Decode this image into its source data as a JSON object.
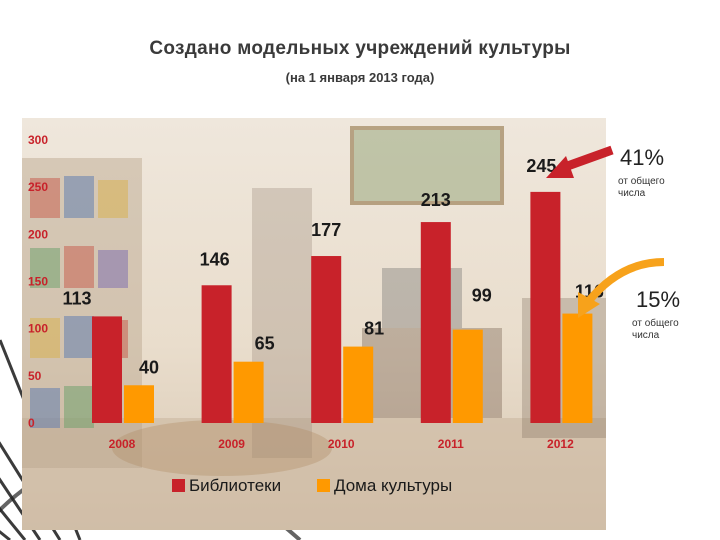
{
  "title": "Создано модельных учреждений культуры",
  "subtitle": "(на 1 января 2013 года)",
  "colors": {
    "libraries": "#c8222a",
    "culture_houses": "#ff9900",
    "arrow_red": "#c8222a",
    "arrow_orange": "#f7a21b"
  },
  "annotations": [
    {
      "percent": "41%",
      "note": "от общего числа",
      "series": "Библиотеки"
    },
    {
      "percent": "15%",
      "note": "от общего числа",
      "series": "Дома культуры"
    }
  ],
  "chart_data": {
    "type": "bar",
    "title": "Создано модельных учреждений культуры",
    "subtitle": "(на 1 января 2013 года)",
    "categories": [
      "2008",
      "2009",
      "2010",
      "2011",
      "2012"
    ],
    "series": [
      {
        "name": "Библиотеки",
        "values": [
          113,
          146,
          177,
          213,
          245
        ]
      },
      {
        "name": "Дома культуры",
        "values": [
          40,
          65,
          81,
          99,
          116
        ]
      }
    ],
    "ylim": [
      0,
      300
    ],
    "yticks": [
      "0",
      "50",
      "100",
      "150",
      "200",
      "250",
      "300"
    ],
    "grid": false,
    "legend": "bottom"
  }
}
